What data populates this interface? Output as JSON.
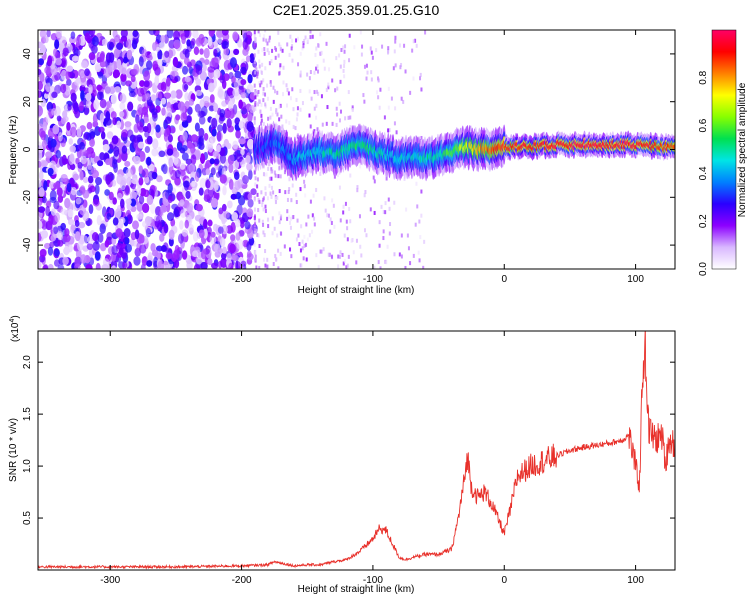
{
  "figure": {
    "title": "C2E1.2025.359.01.25.G10"
  },
  "chart_data": [
    {
      "type": "heatmap",
      "xlabel": "Height of straight line (km)",
      "ylabel": "Frequency (Hz)",
      "xlim": [
        -355,
        130
      ],
      "ylim": [
        -50,
        50
      ],
      "x_ticks": [
        -300,
        -200,
        -100,
        0,
        100
      ],
      "x_tick_labels": [
        "-300",
        "-200",
        "-100",
        "0",
        "100"
      ],
      "y_ticks": [
        -40,
        -20,
        0,
        20,
        40
      ],
      "y_tick_labels": [
        "-40",
        "-20",
        "0",
        "20",
        "40"
      ],
      "grid": false,
      "colorbar": {
        "label": "Normalized spectral amplitude",
        "range": [
          0,
          1
        ],
        "ticks": [
          0.0,
          0.2,
          0.4,
          0.6,
          0.8
        ],
        "tick_labels": [
          "0.0",
          "0.2",
          "0.4",
          "0.6",
          "0.8"
        ],
        "colormap": [
          "#ffffff",
          "#d9b8ff",
          "#8c00ff",
          "#2a00ff",
          "#0080ff",
          "#00e5e5",
          "#00e050",
          "#88ff00",
          "#ffff00",
          "#ff8000",
          "#ff0000",
          "#ff0066"
        ]
      },
      "signal_trace": {
        "x": [
          -190,
          -175,
          -160,
          -150,
          -140,
          -130,
          -120,
          -110,
          -100,
          -90,
          -80,
          -70,
          -60,
          -50,
          -40,
          -30,
          -20,
          -10,
          0,
          20,
          40,
          60,
          80,
          100,
          120,
          130
        ],
        "y": [
          0,
          3,
          -4,
          -2,
          -1,
          -2,
          0,
          3,
          -1,
          -2,
          -4,
          -3,
          -4,
          -3,
          -1,
          1,
          0,
          0,
          1,
          1,
          2,
          2,
          2,
          2,
          1,
          1
        ],
        "amplitude": [
          0.3,
          0.35,
          0.4,
          0.45,
          0.45,
          0.5,
          0.5,
          0.55,
          0.5,
          0.45,
          0.45,
          0.45,
          0.5,
          0.5,
          0.6,
          0.7,
          0.8,
          0.85,
          0.9,
          0.92,
          0.95,
          0.95,
          0.95,
          0.95,
          0.9,
          0.9
        ]
      },
      "noise_floor": {
        "dense_range_x": [
          -355,
          -190
        ],
        "sparse_range_x": [
          -190,
          -60
        ],
        "max_amplitude": 0.25
      }
    },
    {
      "type": "line",
      "xlabel": "Height of straight line (km)",
      "ylabel": "SNR (10 * v/v)",
      "y_scale_label": "(x10",
      "y_scale_exponent": "4",
      "y_scale_suffix": ")",
      "xlim": [
        -355,
        130
      ],
      "ylim": [
        0,
        2.3
      ],
      "x_ticks": [
        -300,
        -200,
        -100,
        0,
        100
      ],
      "x_tick_labels": [
        "-300",
        "-200",
        "-100",
        "0",
        "100"
      ],
      "y_ticks": [
        0.5,
        1.0,
        1.5,
        2.0
      ],
      "y_tick_labels": [
        "0.5",
        "1.0",
        "1.5",
        "2.0"
      ],
      "grid": false,
      "series": [
        {
          "color": "#e8302a",
          "x": [
            -355,
            -300,
            -250,
            -200,
            -180,
            -175,
            -160,
            -150,
            -140,
            -130,
            -120,
            -110,
            -100,
            -95,
            -90,
            -85,
            -80,
            -75,
            -70,
            -60,
            -50,
            -40,
            -35,
            -30,
            -28,
            -25,
            -20,
            -15,
            -10,
            -5,
            0,
            5,
            10,
            20,
            30,
            40,
            50,
            60,
            70,
            80,
            90,
            95,
            100,
            103,
            105,
            107,
            110,
            115,
            120,
            123,
            125,
            130
          ],
          "y": [
            0.03,
            0.03,
            0.03,
            0.04,
            0.05,
            0.08,
            0.04,
            0.05,
            0.05,
            0.08,
            0.1,
            0.18,
            0.3,
            0.4,
            0.38,
            0.25,
            0.12,
            0.1,
            0.12,
            0.15,
            0.15,
            0.2,
            0.5,
            0.9,
            1.1,
            0.8,
            0.7,
            0.75,
            0.65,
            0.5,
            0.35,
            0.6,
            0.9,
            1.0,
            1.05,
            1.1,
            1.15,
            1.18,
            1.2,
            1.22,
            1.25,
            1.3,
            1.0,
            0.8,
            1.8,
            2.2,
            1.35,
            1.25,
            1.3,
            1.0,
            1.25,
            1.22
          ]
        }
      ]
    }
  ]
}
